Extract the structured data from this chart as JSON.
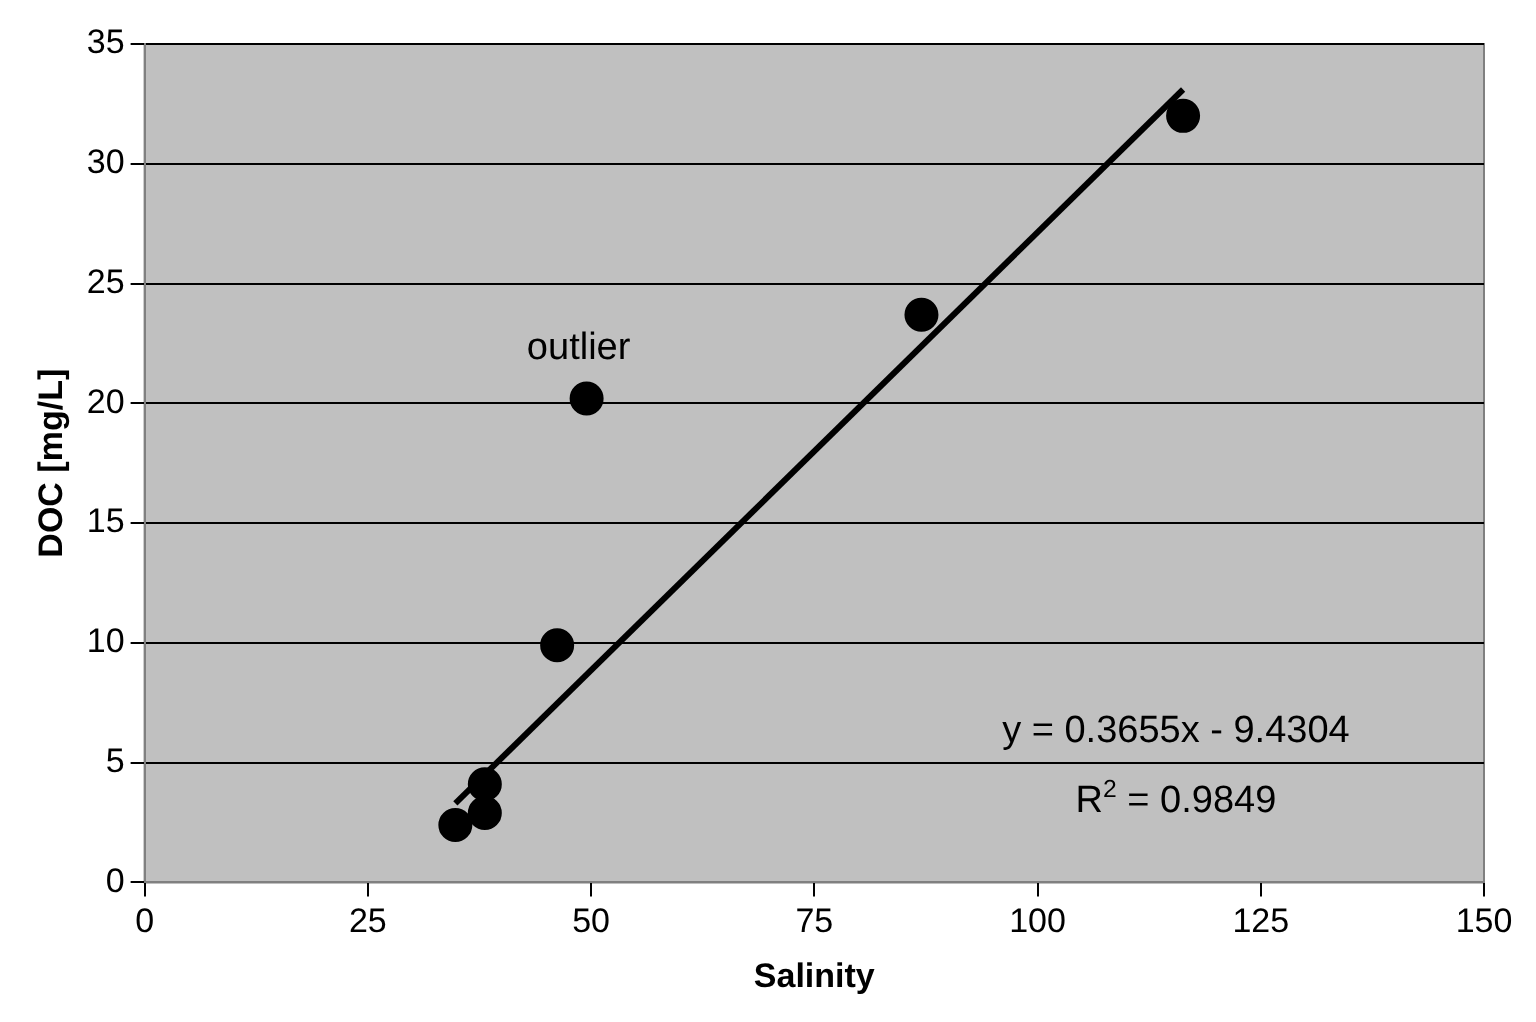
{
  "chart_data": {
    "type": "scatter",
    "xlabel": "Salinity",
    "ylabel": "DOC [mg/L]",
    "xlim": [
      0,
      150
    ],
    "xticks": [
      0,
      25,
      50,
      75,
      100,
      125,
      150
    ],
    "ylim": [
      0,
      35
    ],
    "yticks": [
      0,
      5,
      10,
      15,
      20,
      25,
      30,
      35
    ],
    "grid": "y",
    "legend": false,
    "marker": "circle",
    "series": [
      {
        "color": "#000000",
        "x": [
          34.8,
          38.1,
          38.1,
          46.2,
          49.5,
          87,
          116.3
        ],
        "values": [
          2.4,
          4.1,
          2.9,
          9.9,
          20.2,
          23.7,
          32
        ]
      },
      {
        "type": "line",
        "color": "#000000",
        "x": [
          34.8,
          116.3
        ],
        "values": [
          3.3,
          33.1
        ],
        "marker": "none",
        "line_style": "solid"
      }
    ],
    "annotations": [
      {
        "text": "outlier",
        "x": 49.5,
        "y": 20.2
      },
      "y = 0.3655x - 9.4304",
      "R$^{2}$ = 0.9849"
    ]
  }
}
